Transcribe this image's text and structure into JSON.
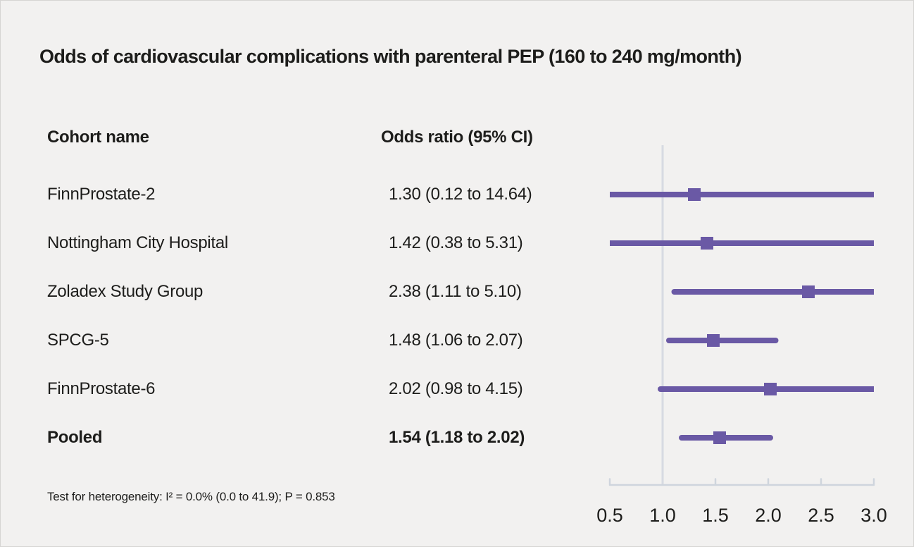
{
  "title": "Odds of cardiovascular complications with parenteral PEP (160 to 240 mg/month)",
  "table": {
    "cohort_header": "Cohort name",
    "or_header": "Odds ratio (95% CI)",
    "rows": [
      {
        "name": "FinnProstate-2",
        "or_text": "1.30 (0.12 to 14.64)",
        "bold": false
      },
      {
        "name": "Nottingham City Hospital",
        "or_text": "1.42 (0.38 to 5.31)",
        "bold": false
      },
      {
        "name": "Zoladex Study Group",
        "or_text": "2.38 (1.11 to 5.10)",
        "bold": false
      },
      {
        "name": "SPCG-5",
        "or_text": "1.48 (1.06 to 2.07)",
        "bold": false
      },
      {
        "name": "FinnProstate-6",
        "or_text": "2.02 (0.98 to 4.15)",
        "bold": false
      },
      {
        "name": "Pooled",
        "or_text": "1.54 (1.18 to 2.02)",
        "bold": true
      }
    ]
  },
  "footnote": "Test for heterogeneity: I² = 0.0% (0.0 to 41.9); P = 0.853",
  "chart_data": {
    "type": "scatter",
    "subtype": "forest-plot",
    "title": "Odds of cardiovascular complications with parenteral PEP (160 to 240 mg/month)",
    "xlabel": "",
    "ylabel": "",
    "xlim": [
      0.5,
      3.0
    ],
    "reference_line": 1.0,
    "grid": false,
    "legend_position": "none",
    "x_ticks": [
      0.5,
      1.0,
      1.5,
      2.0,
      2.5,
      3.0
    ],
    "x_tick_labels": [
      "0.5",
      "1.0",
      "1.5",
      "2.0",
      "2.5",
      "3.0"
    ],
    "series": [
      {
        "name": "FinnProstate-2",
        "odds_ratio": 1.3,
        "ci_low": 0.12,
        "ci_high": 14.64,
        "pooled": false
      },
      {
        "name": "Nottingham City Hospital",
        "odds_ratio": 1.42,
        "ci_low": 0.38,
        "ci_high": 5.31,
        "pooled": false
      },
      {
        "name": "Zoladex Study Group",
        "odds_ratio": 2.38,
        "ci_low": 1.11,
        "ci_high": 5.1,
        "pooled": false
      },
      {
        "name": "SPCG-5",
        "odds_ratio": 1.48,
        "ci_low": 1.06,
        "ci_high": 2.07,
        "pooled": false
      },
      {
        "name": "FinnProstate-6",
        "odds_ratio": 2.02,
        "ci_low": 0.98,
        "ci_high": 4.15,
        "pooled": false
      },
      {
        "name": "Pooled",
        "odds_ratio": 1.54,
        "ci_low": 1.18,
        "ci_high": 2.02,
        "pooled": true
      }
    ],
    "colors": {
      "accent": "#6a59a5",
      "axis": "#cfd5dd",
      "reference_line": "#d7dae2",
      "background": "#f2f1f0",
      "text": "#1d1d1b"
    }
  }
}
